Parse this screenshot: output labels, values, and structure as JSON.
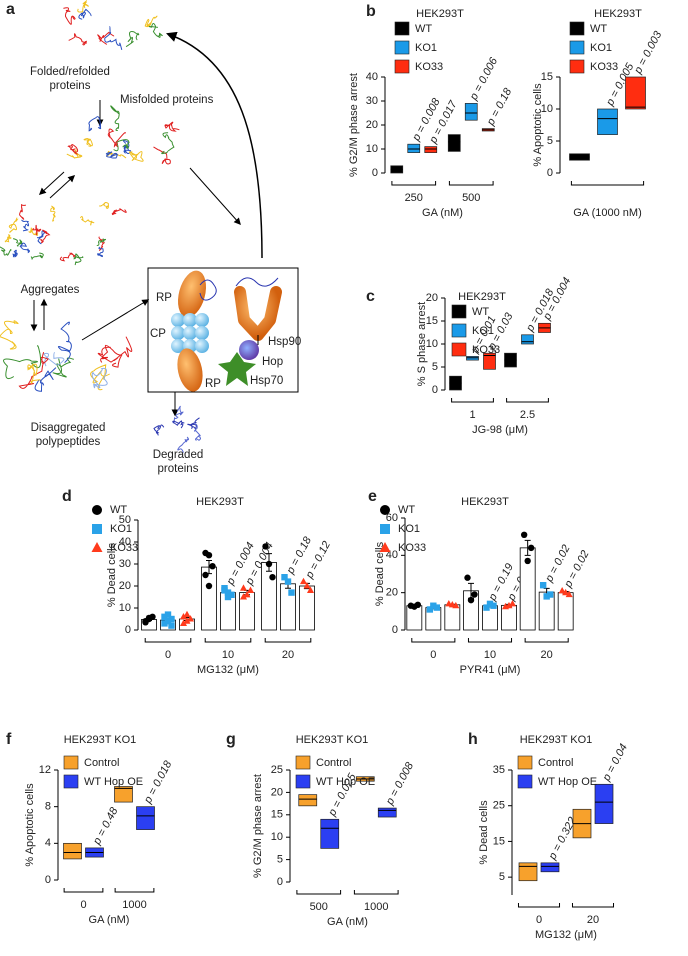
{
  "diagram": {
    "label": "a",
    "nodes": [
      {
        "lines": [
          "Folded/refolded",
          "proteins"
        ]
      },
      {
        "lines": [
          "Misfolded proteins"
        ]
      },
      {
        "lines": [
          "Aggregates"
        ]
      },
      {
        "lines": [
          "Disaggregated",
          "polypeptides"
        ]
      },
      {
        "lines": [
          "Degraded",
          "proteins"
        ]
      },
      {
        "lines": [
          "RP"
        ]
      },
      {
        "lines": [
          "CP"
        ]
      },
      {
        "lines": [
          "RP"
        ]
      },
      {
        "lines": [
          "Hsp90"
        ]
      },
      {
        "lines": [
          "Hop"
        ]
      },
      {
        "lines": [
          "Hsp70"
        ]
      }
    ]
  },
  "chart_data": [
    {
      "type": "box",
      "label": "b",
      "title": "HEK293T",
      "ylabel": "% G2/M phase arrest",
      "xlabel": "GA (nM)",
      "categories": [
        "250",
        "500"
      ],
      "ylim": [
        0,
        40
      ],
      "yticks": [
        0,
        10,
        20,
        30,
        40
      ],
      "legend": "top-left",
      "series": [
        {
          "name": "WT",
          "color": "#000000",
          "low": [
            0,
            9
          ],
          "median": [
            1.5,
            13
          ],
          "high": [
            3,
            16
          ]
        },
        {
          "name": "KO1",
          "color": "#1a9ae8",
          "low": [
            8.5,
            22
          ],
          "median": [
            10,
            25
          ],
          "high": [
            12,
            29
          ],
          "pvalues": [
            "p = 0.008",
            "p = 0.006"
          ]
        },
        {
          "name": "KO33",
          "color": "#ff2d10",
          "low": [
            8.5,
            17.5
          ],
          "median": [
            10,
            18
          ],
          "high": [
            11,
            18.5
          ],
          "pvalues": [
            "p = 0.017",
            "p = 0.18"
          ]
        }
      ]
    },
    {
      "type": "box",
      "title": "HEK293T",
      "ylabel": "% Apoptotic cells",
      "xlabel": "GA (1000 nM)",
      "categories": [
        null
      ],
      "ylim": [
        0,
        15
      ],
      "yticks": [
        0,
        5,
        10,
        15
      ],
      "legend": "top-left",
      "series": [
        {
          "name": "WT",
          "color": "#000000",
          "low": [
            2
          ],
          "median": [
            2.5
          ],
          "high": [
            3
          ]
        },
        {
          "name": "KO1",
          "color": "#1a9ae8",
          "low": [
            6
          ],
          "median": [
            8.5
          ],
          "high": [
            10
          ],
          "pvalues": [
            "p = 0.005"
          ]
        },
        {
          "name": "KO33",
          "color": "#ff2d10",
          "low": [
            10
          ],
          "median": [
            10.3
          ],
          "high": [
            15
          ],
          "pvalues": [
            "p = 0.003"
          ]
        }
      ]
    },
    {
      "type": "box",
      "label": "c",
      "title": "HEK293T",
      "ylabel": "% S phase arrest",
      "xlabel": "JG-98 (μM)",
      "categories": [
        "1",
        "2.5"
      ],
      "ylim": [
        0,
        20
      ],
      "yticks": [
        0,
        5,
        10,
        15,
        20
      ],
      "legend": "top-left",
      "series": [
        {
          "name": "WT",
          "color": "#000000",
          "low": [
            0,
            5
          ],
          "median": [
            1.5,
            6.5
          ],
          "high": [
            3,
            8
          ]
        },
        {
          "name": "KO1",
          "color": "#1a9ae8",
          "low": [
            6.5,
            10
          ],
          "median": [
            7,
            10.5
          ],
          "high": [
            7.3,
            12
          ],
          "pvalues": [
            "p = 0.01",
            "p = 0.018"
          ]
        },
        {
          "name": "KO33",
          "color": "#ff2d10",
          "low": [
            4.5,
            12.5
          ],
          "median": [
            7.5,
            13.5
          ],
          "high": [
            8,
            14.5
          ],
          "pvalues": [
            "p = 0.03",
            "p = 0.004"
          ]
        }
      ]
    },
    {
      "type": "bar",
      "label": "d",
      "title": "HEK293T",
      "ylabel": "% Dead cells",
      "xlabel": "MG132 (μM)",
      "categories": [
        "0",
        "10",
        "20"
      ],
      "ylim": [
        0,
        50
      ],
      "yticks": [
        0,
        10,
        20,
        30,
        40,
        50
      ],
      "legend": "top-left",
      "series": [
        {
          "name": "WT",
          "color": "#000000",
          "marker": "circle",
          "values": [
            4.8,
            28.6,
            30.7
          ],
          "errors": [
            0.5,
            3,
            4
          ],
          "points": [
            [
              4,
              5,
              6,
              3.5,
              5.5
            ],
            [
              35,
              34,
              29,
              25,
              20
            ],
            [
              38,
              30,
              24
            ]
          ]
        },
        {
          "name": "KO1",
          "color": "#2aa2e8",
          "marker": "square",
          "values": [
            4.5,
            17,
            21
          ],
          "errors": [
            0.7,
            0.7,
            2
          ],
          "points": [
            [
              3,
              4,
              5,
              6,
              7,
              2
            ],
            [
              19,
              17,
              16,
              18,
              15
            ],
            [
              24,
              22,
              17
            ]
          ],
          "pvalues": [
            null,
            "p = 0.004",
            "p = 0.18"
          ]
        },
        {
          "name": "KO33",
          "color": "#ff3a1c",
          "marker": "triangle",
          "values": [
            5,
            17,
            20
          ],
          "errors": [
            0.7,
            1,
            1.2
          ],
          "points": [
            [
              3,
              4,
              5,
              6,
              7
            ],
            [
              19,
              16,
              18,
              15
            ],
            [
              22,
              20,
              18
            ]
          ],
          "pvalues": [
            null,
            "p = 0.004",
            "p = 0.12"
          ]
        }
      ]
    },
    {
      "type": "bar",
      "label": "e",
      "title": "HEK293T",
      "ylabel": "% Dead cells",
      "xlabel": "PYR41 (μM)",
      "categories": [
        "0",
        "10",
        "20"
      ],
      "ylim": [
        0,
        60
      ],
      "yticks": [
        0,
        20,
        40,
        60
      ],
      "legend": "top-left",
      "series": [
        {
          "name": "WT",
          "color": "#000000",
          "marker": "circle",
          "values": [
            13,
            21,
            44
          ],
          "errors": [
            0.4,
            4,
            4
          ],
          "points": [
            [
              13,
              12.5,
              13.5
            ],
            [
              28,
              16,
              19
            ],
            [
              51,
              37,
              44
            ]
          ]
        },
        {
          "name": "KO1",
          "color": "#2aa2e8",
          "marker": "square",
          "values": [
            12,
            13,
            20.3
          ],
          "errors": [
            0.6,
            0.6,
            2
          ],
          "points": [
            [
              11,
              13,
              12
            ],
            [
              12,
              14,
              13
            ],
            [
              24,
              18,
              19
            ]
          ],
          "pvalues": [
            null,
            "p = 0.19",
            "p = 0.02"
          ]
        },
        {
          "name": "KO33",
          "color": "#ff3a1c",
          "marker": "triangle",
          "values": [
            13.5,
            13.2,
            20
          ],
          "errors": [
            0.3,
            0.5,
            0.6
          ],
          "points": [
            [
              14,
              13.5,
              13
            ],
            [
              12.5,
              13,
              14
            ],
            [
              21,
              20,
              19
            ]
          ],
          "pvalues": [
            null,
            "p = 0.2",
            "p = 0.02"
          ]
        }
      ]
    },
    {
      "type": "box",
      "label": "f",
      "title": "HEK293T KO1",
      "ylabel": "% Apoptotic cells",
      "xlabel": "GA (nM)",
      "categories": [
        "0",
        "1000"
      ],
      "ylim": [
        0,
        12
      ],
      "yticks": [
        0,
        4,
        8,
        12
      ],
      "legend": "top-left",
      "series": [
        {
          "name": "Control",
          "color": "#f7a12c",
          "low": [
            2.3,
            8.5
          ],
          "median": [
            3,
            10
          ],
          "high": [
            4,
            10.2
          ]
        },
        {
          "name": "WT Hop OE",
          "color": "#2b3ff2",
          "low": [
            2.5,
            5.5
          ],
          "median": [
            3,
            7
          ],
          "high": [
            3.5,
            8
          ],
          "pvalues": [
            "p = 0.48",
            "p = 0.018"
          ]
        }
      ]
    },
    {
      "type": "box",
      "label": "g",
      "title": "HEK293T KO1",
      "ylabel": "% G2/M phase arrest",
      "xlabel": "GA (nM)",
      "categories": [
        "500",
        "1000"
      ],
      "ylim": [
        0,
        25
      ],
      "yticks": [
        0,
        5,
        10,
        15,
        20,
        25
      ],
      "legend": "top-left",
      "series": [
        {
          "name": "Control",
          "color": "#f7a12c",
          "low": [
            17,
            22.5
          ],
          "median": [
            18.5,
            23
          ],
          "high": [
            19.5,
            23.5
          ]
        },
        {
          "name": "WT Hop OE",
          "color": "#2b3ff2",
          "low": [
            7.5,
            14.5
          ],
          "median": [
            12,
            16
          ],
          "high": [
            14,
            16.5
          ],
          "pvalues": [
            "p = 0.025",
            "p = 0.008"
          ]
        }
      ]
    },
    {
      "type": "box",
      "label": "h",
      "title": "HEK293T KO1",
      "ylabel": "% Dead cells",
      "xlabel": "MG132 (μM)",
      "categories": [
        "0",
        "20"
      ],
      "ylim": [
        0,
        35
      ],
      "yticks": [
        5,
        15,
        25,
        35
      ],
      "legend": "top-left",
      "series": [
        {
          "name": "Control",
          "color": "#f7a12c",
          "low": [
            4,
            16
          ],
          "median": [
            8,
            20
          ],
          "high": [
            9,
            24
          ]
        },
        {
          "name": "WT Hop OE",
          "color": "#2b3ff2",
          "low": [
            6.5,
            20
          ],
          "median": [
            8,
            26
          ],
          "high": [
            9,
            31
          ],
          "pvalues": [
            "p = 0.322",
            "p = 0.04"
          ]
        }
      ]
    }
  ]
}
